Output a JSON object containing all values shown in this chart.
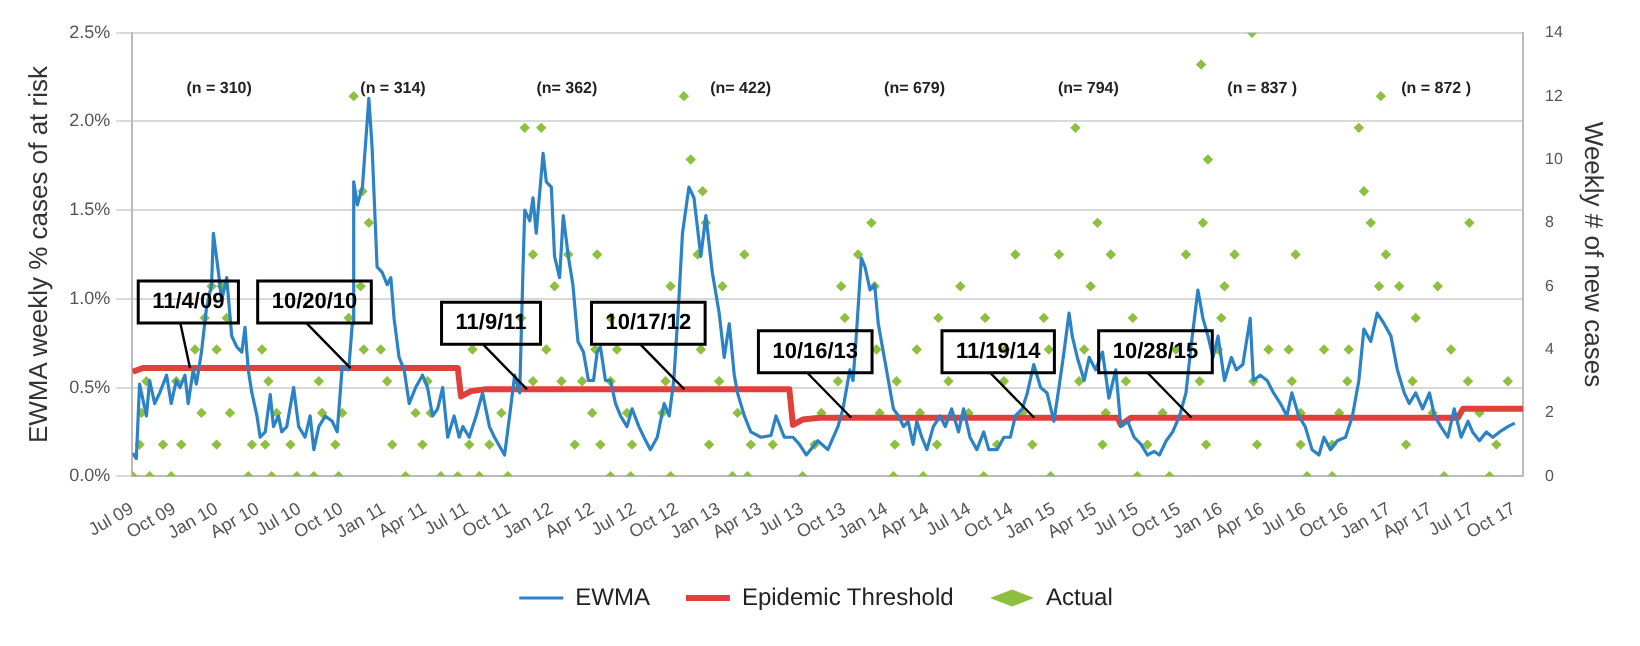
{
  "chart_data": {
    "type": "line",
    "ylabel": "EWMA weekly % cases of at risk",
    "y2label": "Weekly # of new cases",
    "xlim": [
      "2009-07-01",
      "2017-10-20"
    ],
    "xticks": [
      {
        "value": "2009-07-01",
        "label": "Jul 09"
      },
      {
        "value": "2009-10-01",
        "label": "Oct 09"
      },
      {
        "value": "2010-01-01",
        "label": "Jan 10"
      },
      {
        "value": "2010-04-01",
        "label": "Apr 10"
      },
      {
        "value": "2010-07-01",
        "label": "Jul 10"
      },
      {
        "value": "2010-10-01",
        "label": "Oct 10"
      },
      {
        "value": "2011-01-01",
        "label": "Jan 11"
      },
      {
        "value": "2011-04-01",
        "label": "Apr 11"
      },
      {
        "value": "2011-07-01",
        "label": "Jul 11"
      },
      {
        "value": "2011-10-01",
        "label": "Oct 11"
      },
      {
        "value": "2012-01-01",
        "label": "Jan 12"
      },
      {
        "value": "2012-04-01",
        "label": "Apr 12"
      },
      {
        "value": "2012-07-01",
        "label": "Jul 12"
      },
      {
        "value": "2012-10-01",
        "label": "Oct 12"
      },
      {
        "value": "2013-01-01",
        "label": "Jan 13"
      },
      {
        "value": "2013-04-01",
        "label": "Apr 13"
      },
      {
        "value": "2013-07-01",
        "label": "Jul 13"
      },
      {
        "value": "2013-10-01",
        "label": "Oct 13"
      },
      {
        "value": "2014-01-01",
        "label": "Jan 14"
      },
      {
        "value": "2014-04-01",
        "label": "Apr 14"
      },
      {
        "value": "2014-07-01",
        "label": "Jul 14"
      },
      {
        "value": "2014-10-01",
        "label": "Oct 14"
      },
      {
        "value": "2015-01-01",
        "label": "Jan 15"
      },
      {
        "value": "2015-04-01",
        "label": "Apr 15"
      },
      {
        "value": "2015-07-01",
        "label": "Jul 15"
      },
      {
        "value": "2015-10-01",
        "label": "Oct 15"
      },
      {
        "value": "2016-01-01",
        "label": "Jan 16"
      },
      {
        "value": "2016-04-01",
        "label": "Apr 16"
      },
      {
        "value": "2016-07-01",
        "label": "Jul 16"
      },
      {
        "value": "2016-10-01",
        "label": "Oct 16"
      },
      {
        "value": "2017-01-01",
        "label": "Jan 17"
      },
      {
        "value": "2017-04-01",
        "label": "Apr 17"
      },
      {
        "value": "2017-07-01",
        "label": "Jul 17"
      },
      {
        "value": "2017-10-01",
        "label": "Oct 17"
      }
    ],
    "ylim": [
      0,
      2.5
    ],
    "yticks": [
      {
        "value": 0,
        "label": "0.0%"
      },
      {
        "value": 0.5,
        "label": "0.5%"
      },
      {
        "value": 1,
        "label": "1.0%"
      },
      {
        "value": 1.5,
        "label": "1.5%"
      },
      {
        "value": 2,
        "label": "2.0%"
      },
      {
        "value": 2.5,
        "label": "2.5%"
      }
    ],
    "y2lim": [
      0,
      14
    ],
    "y2ticks": [
      0,
      2,
      4,
      6,
      8,
      10,
      12,
      14
    ],
    "grid": "y",
    "legend": "bottom",
    "series": [
      {
        "name": "EWMA",
        "type": "line",
        "color": "#2b83c6",
        "marker": "none",
        "x": [
          "2009-07-02",
          "2009-07-10",
          "2009-07-17",
          "2009-08-01",
          "2009-08-08",
          "2009-08-19",
          "2009-08-30",
          "2009-09-14",
          "2009-09-24",
          "2009-10-05",
          "2009-10-13",
          "2009-10-24",
          "2009-10-31",
          "2009-11-11",
          "2009-11-18",
          "2009-11-29",
          "2009-12-10",
          "2009-12-21",
          "2009-12-25",
          "2010-01-05",
          "2010-01-12",
          "2010-01-23",
          "2010-02-03",
          "2010-02-14",
          "2010-02-25",
          "2010-03-04",
          "2010-03-11",
          "2010-03-19",
          "2010-03-30",
          "2010-04-06",
          "2010-04-17",
          "2010-04-28",
          "2010-05-05",
          "2010-05-16",
          "2010-05-23",
          "2010-06-03",
          "2010-06-18",
          "2010-06-29",
          "2010-07-13",
          "2010-07-24",
          "2010-08-01",
          "2010-08-12",
          "2010-08-26",
          "2010-09-10",
          "2010-09-21",
          "2010-10-02",
          "2010-10-16",
          "2010-10-24",
          "2010-10-27",
          "2010-11-04",
          "2010-11-15",
          "2010-11-29",
          "2010-12-06",
          "2010-12-17",
          "2010-12-28",
          "2011-01-08",
          "2011-01-16",
          "2011-01-23",
          "2011-02-03",
          "2011-02-14",
          "2011-02-25",
          "2011-03-11",
          "2011-03-26",
          "2011-04-06",
          "2011-04-17",
          "2011-04-28",
          "2011-05-09",
          "2011-05-20",
          "2011-06-03",
          "2011-06-14",
          "2011-06-22",
          "2011-07-06",
          "2011-07-21",
          "2011-08-04",
          "2011-08-19",
          "2011-08-30",
          "2011-09-21",
          "2011-10-02",
          "2011-10-13",
          "2011-10-24",
          "2011-10-31",
          "2011-11-04",
          "2011-11-15",
          "2011-11-22",
          "2011-11-29",
          "2011-12-14",
          "2011-12-21",
          "2012-01-01",
          "2012-01-08",
          "2012-01-19",
          "2012-01-27",
          "2012-02-07",
          "2012-02-17",
          "2012-02-28",
          "2012-03-11",
          "2012-03-22",
          "2012-04-02",
          "2012-04-10",
          "2012-04-17",
          "2012-04-28",
          "2012-05-09",
          "2012-05-20",
          "2012-05-31",
          "2012-06-14",
          "2012-06-25",
          "2012-07-10",
          "2012-07-21",
          "2012-08-04",
          "2012-08-19",
          "2012-09-03",
          "2012-09-14",
          "2012-09-24",
          "2012-10-05",
          "2012-10-13",
          "2012-10-27",
          "2012-11-07",
          "2012-11-22",
          "2012-12-03",
          "2012-12-17",
          "2013-01-01",
          "2013-01-12",
          "2013-01-23",
          "2013-02-03",
          "2013-02-10",
          "2013-02-25",
          "2013-03-11",
          "2013-04-02",
          "2013-04-24",
          "2013-05-05",
          "2013-05-23",
          "2013-06-11",
          "2013-06-25",
          "2013-07-10",
          "2013-08-04",
          "2013-08-26",
          "2013-09-17",
          "2013-09-28",
          "2013-10-13",
          "2013-10-20",
          "2013-10-27",
          "2013-11-07",
          "2013-11-15",
          "2013-11-26",
          "2013-12-06",
          "2013-12-14",
          "2013-12-25",
          "2014-01-05",
          "2014-01-16",
          "2014-01-27",
          "2014-02-07",
          "2014-02-17",
          "2014-02-28",
          "2014-03-08",
          "2014-03-19",
          "2014-03-30",
          "2014-04-13",
          "2014-04-28",
          "2014-05-09",
          "2014-05-23",
          "2014-06-07",
          "2014-06-18",
          "2014-07-02",
          "2014-07-17",
          "2014-08-01",
          "2014-08-12",
          "2014-08-30",
          "2014-09-14",
          "2014-09-28",
          "2014-10-09",
          "2014-10-24",
          "2014-11-04",
          "2014-11-18",
          "2014-12-03",
          "2014-12-17",
          "2015-01-01",
          "2015-01-12",
          "2015-01-23",
          "2015-02-03",
          "2015-02-10",
          "2015-02-21",
          "2015-03-08",
          "2015-03-19",
          "2015-04-02",
          "2015-04-17",
          "2015-05-01",
          "2015-05-16",
          "2015-05-27",
          "2015-06-11",
          "2015-06-25",
          "2015-07-10",
          "2015-07-24",
          "2015-08-08",
          "2015-08-19",
          "2015-09-03",
          "2015-09-17",
          "2015-10-02",
          "2015-10-16",
          "2015-10-27",
          "2015-11-11",
          "2015-11-22",
          "2015-12-03",
          "2015-12-14",
          "2015-12-25",
          "2016-01-08",
          "2016-01-23",
          "2016-02-03",
          "2016-02-17",
          "2016-03-04",
          "2016-03-11",
          "2016-03-26",
          "2016-04-10",
          "2016-04-24",
          "2016-05-09",
          "2016-05-23",
          "2016-06-03",
          "2016-06-18",
          "2016-07-02",
          "2016-07-17",
          "2016-08-01",
          "2016-08-12",
          "2016-08-26",
          "2016-09-10",
          "2016-09-28",
          "2016-10-13",
          "2016-10-27",
          "2016-11-07",
          "2016-11-22",
          "2016-12-06",
          "2016-12-21",
          "2017-01-05",
          "2017-01-19",
          "2017-02-03",
          "2017-02-14",
          "2017-02-28",
          "2017-03-15",
          "2017-03-30",
          "2017-04-10",
          "2017-04-24",
          "2017-05-09",
          "2017-05-23",
          "2017-06-07",
          "2017-06-22",
          "2017-07-02",
          "2017-07-17",
          "2017-08-01",
          "2017-08-15",
          "2017-08-30",
          "2017-09-17",
          "2017-10-02"
        ],
        "values": [
          0.13,
          0.1,
          0.52,
          0.34,
          0.54,
          0.41,
          0.47,
          0.57,
          0.41,
          0.54,
          0.5,
          0.57,
          0.41,
          0.6,
          0.52,
          0.7,
          0.95,
          1.08,
          1.37,
          1.15,
          0.99,
          1.12,
          0.79,
          0.73,
          0.7,
          0.84,
          0.6,
          0.47,
          0.34,
          0.22,
          0.25,
          0.46,
          0.28,
          0.34,
          0.25,
          0.28,
          0.5,
          0.28,
          0.22,
          0.34,
          0.15,
          0.28,
          0.34,
          0.31,
          0.25,
          0.62,
          0.6,
          0.86,
          1.66,
          1.53,
          1.63,
          2.13,
          1.86,
          1.18,
          1.15,
          1.08,
          1.12,
          0.89,
          0.67,
          0.6,
          0.41,
          0.5,
          0.57,
          0.5,
          0.34,
          0.38,
          0.5,
          0.22,
          0.34,
          0.22,
          0.28,
          0.22,
          0.34,
          0.47,
          0.28,
          0.22,
          0.12,
          0.34,
          0.57,
          0.47,
          1.15,
          1.5,
          1.44,
          1.57,
          1.37,
          1.82,
          1.66,
          1.63,
          1.24,
          1.12,
          1.47,
          1.24,
          1.08,
          0.76,
          0.7,
          0.54,
          0.54,
          0.7,
          0.73,
          0.54,
          0.54,
          0.41,
          0.34,
          0.28,
          0.38,
          0.28,
          0.22,
          0.15,
          0.22,
          0.41,
          0.34,
          0.54,
          0.99,
          1.37,
          1.63,
          1.57,
          1.24,
          1.47,
          1.15,
          0.92,
          0.67,
          0.86,
          0.57,
          0.47,
          0.34,
          0.25,
          0.22,
          0.23,
          0.34,
          0.22,
          0.22,
          0.18,
          0.12,
          0.2,
          0.15,
          0.28,
          0.38,
          0.6,
          0.54,
          0.79,
          1.23,
          1.18,
          1.05,
          1.08,
          0.86,
          0.7,
          0.54,
          0.38,
          0.34,
          0.28,
          0.31,
          0.18,
          0.31,
          0.22,
          0.15,
          0.28,
          0.34,
          0.28,
          0.38,
          0.25,
          0.38,
          0.22,
          0.15,
          0.25,
          0.15,
          0.15,
          0.22,
          0.22,
          0.34,
          0.38,
          0.47,
          0.63,
          0.5,
          0.47,
          0.31,
          0.5,
          0.7,
          0.92,
          0.79,
          0.67,
          0.54,
          0.67,
          0.6,
          0.7,
          0.44,
          0.6,
          0.28,
          0.31,
          0.22,
          0.18,
          0.12,
          0.14,
          0.12,
          0.2,
          0.25,
          0.34,
          0.47,
          0.73,
          1.05,
          0.89,
          0.79,
          0.67,
          0.79,
          0.54,
          0.67,
          0.6,
          0.63,
          0.89,
          0.54,
          0.57,
          0.54,
          0.47,
          0.41,
          0.34,
          0.47,
          0.34,
          0.28,
          0.15,
          0.12,
          0.22,
          0.15,
          0.2,
          0.22,
          0.34,
          0.54,
          0.83,
          0.76,
          0.92,
          0.86,
          0.79,
          0.6,
          0.47,
          0.41,
          0.47,
          0.38,
          0.47,
          0.34,
          0.28,
          0.22,
          0.38,
          0.22,
          0.31,
          0.25,
          0.2,
          0.25,
          0.22,
          0.25,
          0.28,
          0.3
        ]
      },
      {
        "name": "Epidemic Threshold",
        "type": "line",
        "color": "#e0403a",
        "marker": "none",
        "x": [
          "2009-07-02",
          "2009-07-24",
          "2011-06-11",
          "2011-06-18",
          "2011-07-10",
          "2011-08-08",
          "2013-06-03",
          "2013-06-11",
          "2013-07-02",
          "2013-08-08",
          "2015-05-20",
          "2015-05-27",
          "2015-06-18",
          "2017-05-31",
          "2017-06-11",
          "2017-10-20"
        ],
        "values": [
          0.59,
          0.61,
          0.61,
          0.45,
          0.48,
          0.49,
          0.49,
          0.29,
          0.32,
          0.33,
          0.33,
          0.29,
          0.33,
          0.33,
          0.38,
          0.38
        ]
      },
      {
        "name": "Actual",
        "type": "scatter",
        "axis": "y2",
        "color": "#8cc03e",
        "marker": "diamond",
        "x": [
          "2009-07-02",
          "2009-08-08",
          "2009-09-24",
          "2010-03-11",
          "2010-05-01",
          "2010-06-25",
          "2010-08-01",
          "2010-09-24",
          "2011-02-17",
          "2011-05-05",
          "2011-06-11",
          "2011-07-28",
          "2011-09-28",
          "2012-05-09",
          "2012-06-22",
          "2012-09-17",
          "2013-01-30",
          "2013-03-04",
          "2009-07-17",
          "2009-09-06",
          "2009-10-16",
          "2010-01-01",
          "2010-03-19",
          "2010-04-17",
          "2010-06-11",
          "2010-09-17",
          "2011-01-19",
          "2011-03-26",
          "2011-07-06",
          "2011-08-19",
          "2012-02-21",
          "2012-04-17",
          "2012-06-25",
          "2012-12-10",
          "2013-03-11",
          "2013-04-28",
          "2009-07-21",
          "2009-11-29",
          "2010-01-30",
          "2010-05-12",
          "2010-08-19",
          "2010-10-02",
          "2011-03-11",
          "2011-04-13",
          "2011-09-14",
          "2012-03-30",
          "2012-06-14",
          "2012-08-30",
          "2013-02-10",
          "2009-08-01",
          "2009-10-05",
          "2010-04-24",
          "2010-08-12",
          "2011-01-08",
          "2011-04-06",
          "2011-11-22",
          "2012-01-23",
          "2012-03-08",
          "2012-05-09",
          "2012-09-06",
          "2013-01-01",
          "2009-11-15",
          "2010-01-01",
          "2010-04-10",
          "2010-11-18",
          "2010-12-25",
          "2011-07-13",
          "2011-12-21",
          "2012-04-06",
          "2012-05-23",
          "2012-11-22",
          "2009-12-06",
          "2010-01-23",
          "2010-10-16",
          "2011-10-27",
          "2012-05-09",
          "2009-12-21",
          "2010-01-12",
          "2010-11-11",
          "2012-01-08",
          "2012-09-17",
          "2013-01-08",
          "2011-11-22",
          "2012-02-07",
          "2012-04-10",
          "2012-11-15",
          "2013-02-25",
          "2010-11-29",
          "2012-12-03",
          "2010-11-15",
          "2012-11-26",
          "2012-10-31",
          "2011-11-04",
          "2011-12-10",
          "2010-10-27",
          "2012-10-16",
          "2013-07-02",
          "2014-01-16",
          "2014-03-22",
          "2014-08-01",
          "2014-12-25",
          "2015-07-02",
          "2015-09-10",
          "2016-07-06",
          "2016-08-30",
          "2017-05-01",
          "2017-08-08",
          "2013-07-28",
          "2014-01-19",
          "2014-04-21",
          "2014-08-30",
          "2014-11-15",
          "2015-04-17",
          "2015-07-24",
          "2015-11-29",
          "2016-03-19",
          "2016-06-22",
          "2016-08-30",
          "2017-02-07",
          "2017-08-23",
          "2013-08-12",
          "2013-12-17",
          "2014-03-15",
          "2014-06-29",
          "2014-10-24",
          "2015-04-24",
          "2015-08-26",
          "2016-06-22",
          "2016-09-14",
          "2017-04-06",
          "2017-07-17",
          "2013-09-17",
          "2014-01-23",
          "2014-05-16",
          "2014-09-14",
          "2015-02-25",
          "2015-06-07",
          "2015-11-15",
          "2016-03-11",
          "2016-06-03",
          "2016-10-02",
          "2017-02-21",
          "2017-06-22",
          "2017-09-17",
          "2013-12-10",
          "2014-03-08",
          "2014-09-17",
          "2014-12-21",
          "2015-03-08",
          "2015-09-24",
          "2015-12-25",
          "2016-04-13",
          "2016-05-27",
          "2016-08-12",
          "2016-10-05",
          "2017-05-16",
          "2013-10-02",
          "2014-04-24",
          "2014-08-04",
          "2014-12-10",
          "2015-06-22",
          "2016-01-01",
          "2017-02-28",
          "2013-09-24",
          "2013-12-06",
          "2014-06-11",
          "2015-03-22",
          "2016-01-08",
          "2016-12-10",
          "2017-01-23",
          "2017-04-17",
          "2013-10-31",
          "2014-10-09",
          "2015-01-12",
          "2015-05-05",
          "2015-10-16",
          "2016-01-30",
          "2016-06-11",
          "2016-12-25",
          "2013-11-29",
          "2015-04-06",
          "2015-11-22",
          "2016-11-22",
          "2017-06-25",
          "2016-11-07",
          "2015-12-03",
          "2015-02-17",
          "2016-10-27",
          "2016-12-14",
          "2015-11-18",
          "2016-03-08"
        ],
        "values": [
          0,
          0,
          0,
          0,
          0,
          0,
          0,
          0,
          0,
          0,
          0,
          0,
          0,
          0,
          0,
          0,
          0,
          0,
          1,
          1,
          1,
          1,
          1,
          1,
          1,
          1,
          1,
          1,
          1,
          1,
          1,
          1,
          1,
          1,
          1,
          1,
          2,
          2,
          2,
          2,
          2,
          2,
          2,
          2,
          2,
          2,
          2,
          2,
          2,
          3,
          3,
          3,
          3,
          3,
          3,
          3,
          3,
          3,
          3,
          3,
          3,
          4,
          4,
          4,
          4,
          4,
          4,
          4,
          4,
          4,
          4,
          5,
          5,
          5,
          5,
          5,
          6,
          6,
          6,
          6,
          6,
          6,
          7,
          7,
          7,
          7,
          7,
          8,
          8,
          9,
          9,
          10,
          11,
          11,
          12,
          12,
          0,
          0,
          0,
          0,
          0,
          0,
          0,
          0,
          0,
          0,
          0,
          1,
          1,
          1,
          1,
          1,
          1,
          1,
          1,
          1,
          1,
          1,
          1,
          1,
          2,
          2,
          2,
          2,
          2,
          2,
          2,
          2,
          2,
          2,
          2,
          3,
          3,
          3,
          3,
          3,
          3,
          3,
          3,
          3,
          3,
          3,
          3,
          3,
          4,
          4,
          4,
          4,
          4,
          4,
          4,
          4,
          4,
          4,
          4,
          4,
          5,
          5,
          5,
          5,
          5,
          5,
          5,
          6,
          6,
          6,
          6,
          6,
          6,
          6,
          6,
          7,
          7,
          7,
          7,
          7,
          7,
          7,
          7,
          8,
          8,
          8,
          8,
          8,
          9,
          10,
          11,
          11,
          12,
          13,
          14
        ]
      }
    ],
    "annotations": [
      "(n = 310)",
      "(n = 314)",
      "(n= 362)",
      "(n= 422)",
      "(n= 679)",
      "(n= 794)",
      "(n = 837 )",
      "(n = 872 )",
      {
        "text": "11/4/09",
        "x": "2009-11-04",
        "y": 0.61
      },
      {
        "text": "10/20/10",
        "x": "2010-10-20",
        "y": 0.61
      },
      {
        "text": "11/9/11",
        "x": "2011-11-09",
        "y": 0.49
      },
      {
        "text": "10/17/12",
        "x": "2012-10-17",
        "y": 0.49
      },
      {
        "text": "10/16/13",
        "x": "2013-10-16",
        "y": 0.33
      },
      {
        "text": "11/19/14",
        "x": "2014-11-19",
        "y": 0.33
      },
      {
        "text": "10/28/15",
        "x": "2015-10-28",
        "y": 0.33
      }
    ]
  }
}
